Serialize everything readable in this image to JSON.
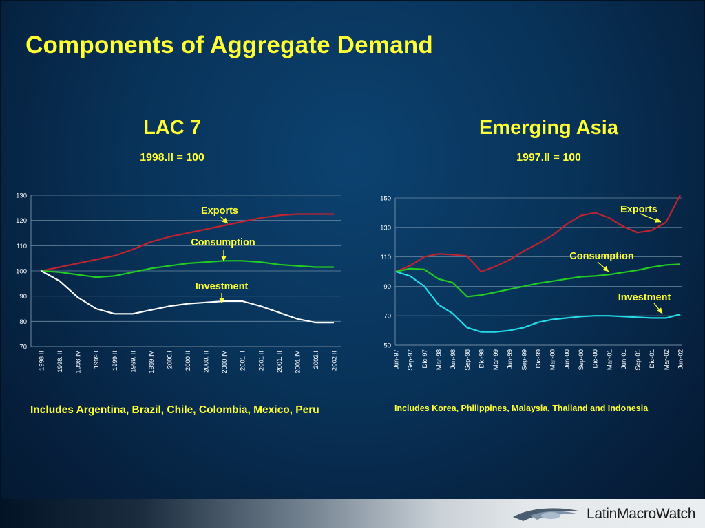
{
  "title": "Components of Aggregate Demand",
  "colors": {
    "title": "#ffff33",
    "exports": "#c0222f",
    "consumption": "#22cc22",
    "investment_lac": "#ffffff",
    "investment_asia": "#22dde8",
    "grid": "#6e8aa0",
    "arrow": "#ffff33",
    "axis_text": "#ffffff"
  },
  "panels": {
    "lac": {
      "title": "LAC 7",
      "subtitle": "1998.II = 100",
      "note": "Includes Argentina, Brazil, Chile, Colombia, Mexico, Peru",
      "labels": {
        "exports": "Exports",
        "consumption": "Consumption",
        "investment": "Investment"
      }
    },
    "asia": {
      "title": "Emerging Asia",
      "subtitle": "1997.II = 100",
      "note": "Includes Korea, Philippines,  Malaysia, Thailand and Indonesia",
      "labels": {
        "exports": "Exports",
        "consumption": "Consumption",
        "investment": "Investment"
      }
    }
  },
  "logo": {
    "text": "LatinMacroWatch",
    "icon": "swoosh-logo-icon"
  },
  "chart_data": [
    {
      "type": "line",
      "title": "LAC 7",
      "subtitle": "1998.II = 100",
      "x": [
        "1998.II",
        "1998.III",
        "1998.IV",
        "1999.I",
        "1999.II",
        "1999.III",
        "1999.IV",
        "2000.I",
        "2000.II",
        "2000.III",
        "2000.IV",
        "2001. I",
        "2001.II",
        "2001.III",
        "2001.IV",
        "2002.I",
        "2002.II"
      ],
      "ylim": [
        70,
        130
      ],
      "yticks": [
        70,
        80,
        90,
        100,
        110,
        120,
        130
      ],
      "grid": true,
      "series": [
        {
          "name": "Exports",
          "values": [
            100,
            101.5,
            103,
            104.5,
            106,
            108.5,
            111.5,
            113.5,
            115,
            116.5,
            118,
            119.5,
            121,
            122,
            122.5,
            122.5,
            122.5
          ]
        },
        {
          "name": "Consumption",
          "values": [
            100,
            99.5,
            98.5,
            97.5,
            98,
            99.5,
            101,
            102,
            103,
            103.5,
            104,
            104,
            103.5,
            102.5,
            102,
            101.5,
            101.5
          ]
        },
        {
          "name": "Investment",
          "values": [
            100,
            96,
            89.5,
            85,
            83,
            83,
            84.5,
            86,
            87,
            87.5,
            88,
            88,
            86,
            83.5,
            81,
            79.5,
            79.5
          ]
        }
      ]
    },
    {
      "type": "line",
      "title": "Emerging Asia",
      "subtitle": "1997.II = 100",
      "x": [
        "Jun-97",
        "Sep-97",
        "Dic-97",
        "Mar-98",
        "Jun-98",
        "Sep-98",
        "Dic-98",
        "Mar-99",
        "Jun-99",
        "Sep-99",
        "Dic-99",
        "Mar-00",
        "Jun-00",
        "Sep-00",
        "Dic-00",
        "Mar-01",
        "Jun-01",
        "Sep-01",
        "Dic-01",
        "Mar-02",
        "Jun-02"
      ],
      "ylim": [
        50,
        150
      ],
      "yticks": [
        50,
        70,
        90,
        110,
        130,
        150
      ],
      "grid": true,
      "series": [
        {
          "name": "Exports",
          "values": [
            100,
            104,
            110,
            112,
            111.5,
            110.5,
            100,
            103.5,
            108,
            114,
            119,
            124.5,
            132,
            138,
            140,
            136.5,
            130.5,
            126.5,
            128,
            133.5,
            152
          ]
        },
        {
          "name": "Consumption",
          "values": [
            100,
            102,
            101.5,
            95,
            92.5,
            83,
            84,
            86,
            88,
            90,
            92,
            93.5,
            95,
            96.5,
            97,
            98,
            99.5,
            101,
            103,
            104.5,
            105
          ]
        },
        {
          "name": "Investment",
          "values": [
            100,
            97,
            90,
            77.5,
            71.5,
            62,
            59,
            59,
            60,
            62,
            65.5,
            67.5,
            68.5,
            69.5,
            70,
            70,
            69.5,
            69,
            68.5,
            68.5,
            71
          ]
        }
      ]
    }
  ]
}
